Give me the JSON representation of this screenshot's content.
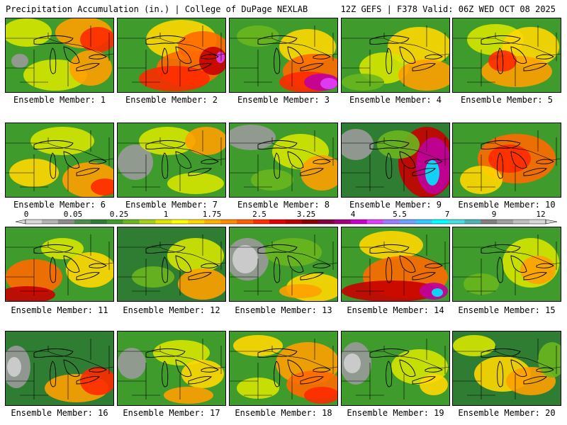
{
  "header": {
    "title": "Precipitation Accumulation (in.) | College of DuPage NEXLAB",
    "run_info": "12Z GEFS | F378 Valid: 06Z WED OCT 08 2025"
  },
  "colorbar": {
    "labels": [
      "0",
      "0.05",
      "0.25",
      "1",
      "1.75",
      "2.5",
      "3.25",
      "4",
      "5.5",
      "7",
      "9",
      "12"
    ],
    "colors": [
      "#d8d8d8",
      "#b4b4b4",
      "#8c8c8c",
      "#4e8c4e",
      "#2e7d32",
      "#3f9b2c",
      "#6ab61f",
      "#a6d114",
      "#e0e800",
      "#ffff00",
      "#ffd700",
      "#ffb000",
      "#ff8c00",
      "#ff5e00",
      "#ff2e00",
      "#e00000",
      "#b80000",
      "#8b0000",
      "#800040",
      "#a0007a",
      "#c800c8",
      "#e040fb",
      "#9b7cff",
      "#6fa0ff",
      "#35c8ff",
      "#00ffff",
      "#44e0e0",
      "#4cb4b4",
      "#808080",
      "#a0a0a0",
      "#c0c0c0",
      "#d8d8d8"
    ]
  },
  "members": [
    {
      "label": "Ensemble Member: 1"
    },
    {
      "label": "Ensemble Member: 2"
    },
    {
      "label": "Ensemble Member: 3"
    },
    {
      "label": "Ensemble Member: 4"
    },
    {
      "label": "Ensemble Member: 5"
    },
    {
      "label": "Ensemble Member: 6"
    },
    {
      "label": "Ensemble Member: 7"
    },
    {
      "label": "Ensemble Member: 8"
    },
    {
      "label": "Ensemble Member: 9"
    },
    {
      "label": "Ensemble Member: 10"
    },
    {
      "label": "Ensemble Member: 11"
    },
    {
      "label": "Ensemble Member: 12"
    },
    {
      "label": "Ensemble Member: 13"
    },
    {
      "label": "Ensemble Member: 14"
    },
    {
      "label": "Ensemble Member: 15"
    },
    {
      "label": "Ensemble Member: 16"
    },
    {
      "label": "Ensemble Member: 17"
    },
    {
      "label": "Ensemble Member: 18"
    },
    {
      "label": "Ensemble Member: 19"
    },
    {
      "label": "Ensemble Member: 20"
    }
  ]
}
